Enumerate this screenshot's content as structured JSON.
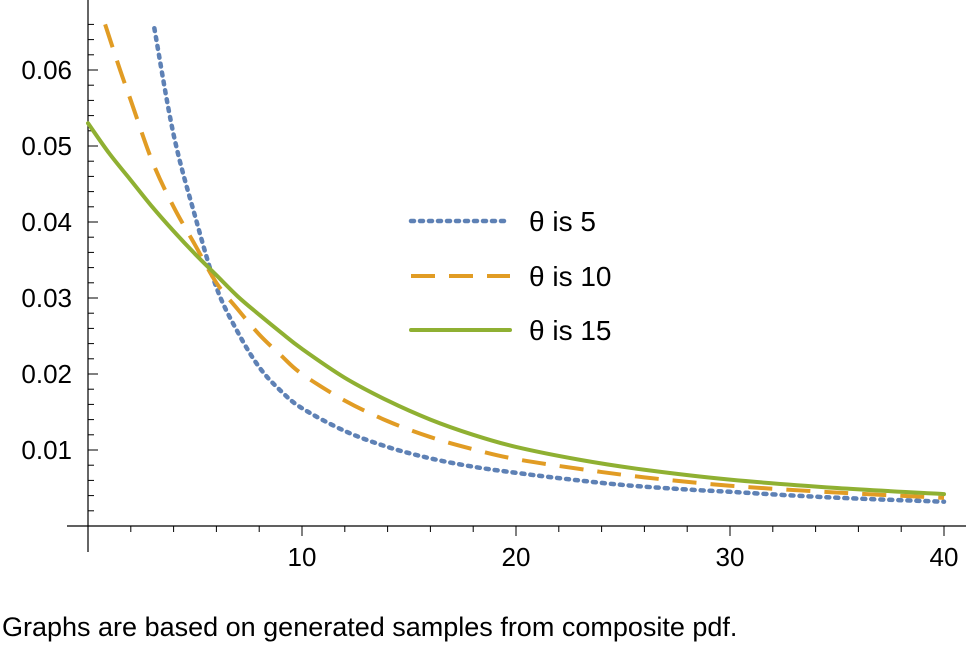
{
  "caption": "Graphs are based on generated samples from composite pdf.",
  "chart_data": {
    "type": "line",
    "title": "",
    "xlabel": "",
    "ylabel": "",
    "xlim": [
      0,
      40
    ],
    "ylim": [
      -0.001,
      0.068
    ],
    "x_axis_crossing_y": 0,
    "x_ticks": [
      10,
      20,
      30,
      40
    ],
    "y_ticks": [
      0.01,
      0.02,
      0.03,
      0.04,
      0.05,
      0.06
    ],
    "y_tick_labels": [
      "0.01",
      "0.02",
      "0.03",
      "0.04",
      "0.05",
      "0.06"
    ],
    "x_tick_labels": [
      "10",
      "20",
      "30",
      "40"
    ],
    "grid": false,
    "legend_position": "center-right",
    "series": [
      {
        "name": "θ is 5",
        "color": "#5E81B5",
        "style": "dotted",
        "x": [
          3.1,
          4,
          5,
          6,
          7,
          8,
          9,
          10,
          12,
          14,
          16,
          18,
          20,
          22,
          25,
          28,
          30,
          33,
          36,
          40
        ],
        "y": [
          0.0655,
          0.0515,
          0.0408,
          0.0314,
          0.0255,
          0.0209,
          0.0178,
          0.0155,
          0.0125,
          0.0104,
          0.0089,
          0.0078,
          0.007,
          0.0063,
          0.0054,
          0.0048,
          0.0045,
          0.004,
          0.0036,
          0.0032
        ]
      },
      {
        "name": "θ is 10",
        "color": "#E19C24",
        "style": "dashed",
        "x": [
          0.8,
          1.5,
          2,
          3,
          4,
          5,
          6,
          7,
          8,
          9,
          10,
          12,
          14,
          16,
          18,
          20,
          23,
          26,
          30,
          35,
          40
        ],
        "y": [
          0.066,
          0.06,
          0.056,
          0.048,
          0.042,
          0.037,
          0.032,
          0.0285,
          0.0252,
          0.0225,
          0.02,
          0.0165,
          0.0138,
          0.0117,
          0.0101,
          0.0088,
          0.0075,
          0.0064,
          0.0053,
          0.0044,
          0.0037
        ]
      },
      {
        "name": "θ is 15",
        "color": "#8FB032",
        "style": "solid",
        "x": [
          0,
          1,
          2,
          3,
          4,
          5,
          6,
          7,
          8,
          9,
          10,
          12,
          14,
          16,
          18,
          20,
          23,
          26,
          30,
          35,
          40
        ],
        "y": [
          0.053,
          0.049,
          0.0455,
          0.042,
          0.0388,
          0.0358,
          0.033,
          0.0302,
          0.0278,
          0.0255,
          0.0233,
          0.0195,
          0.0165,
          0.014,
          0.012,
          0.0104,
          0.0087,
          0.0074,
          0.0061,
          0.005,
          0.0042
        ]
      }
    ]
  }
}
